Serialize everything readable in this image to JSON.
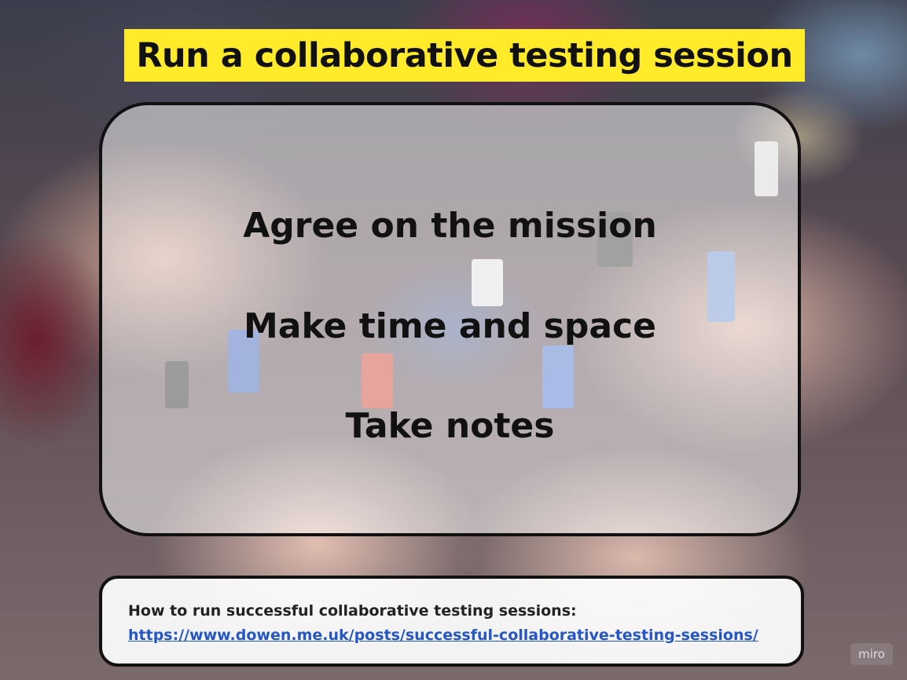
{
  "slide": {
    "title": "Run a collaborative testing session",
    "points": [
      "Agree on the mission",
      "Make time and space",
      "Take notes"
    ],
    "reference": {
      "label": "How to run successful collaborative testing sessions:",
      "link": "https://www.dowen.me.uk/posts/successful-collaborative-testing-sessions/"
    },
    "watermark": "miro"
  },
  "colors": {
    "title_background": "#ffeb2a",
    "link": "#2357c9"
  },
  "background_image": "hands-holding-lego-figures-photo"
}
